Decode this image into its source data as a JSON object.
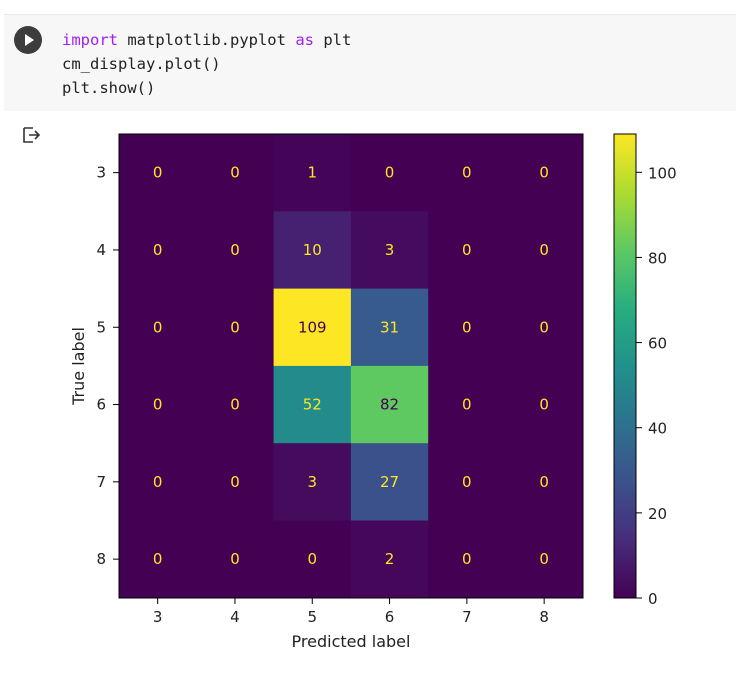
{
  "code": {
    "line1": {
      "kw1": "import",
      "mid": " matplotlib.pyplot ",
      "kw2": "as",
      "tail": " plt"
    },
    "line2": "cm_display.plot()",
    "line3": "plt.show()"
  },
  "icons": {
    "run": "play-icon",
    "output": "output-arrow-icon"
  },
  "chart_data": {
    "type": "heatmap",
    "xlabel": "Predicted label",
    "ylabel": "True label",
    "x_categories": [
      "3",
      "4",
      "5",
      "6",
      "7",
      "8"
    ],
    "y_categories": [
      "3",
      "4",
      "5",
      "6",
      "7",
      "8"
    ],
    "values": [
      [
        0,
        0,
        1,
        0,
        0,
        0
      ],
      [
        0,
        0,
        10,
        3,
        0,
        0
      ],
      [
        0,
        0,
        109,
        31,
        0,
        0
      ],
      [
        0,
        0,
        52,
        82,
        0,
        0
      ],
      [
        0,
        0,
        3,
        27,
        0,
        0
      ],
      [
        0,
        0,
        0,
        2,
        0,
        0
      ]
    ],
    "colormap": "viridis",
    "colorbar": {
      "min": 0,
      "max": 109,
      "ticks": [
        "0",
        "20",
        "40",
        "60",
        "80",
        "100"
      ]
    },
    "text_colors": {
      "on_dark": "#fde725",
      "on_light": "#440154"
    }
  }
}
